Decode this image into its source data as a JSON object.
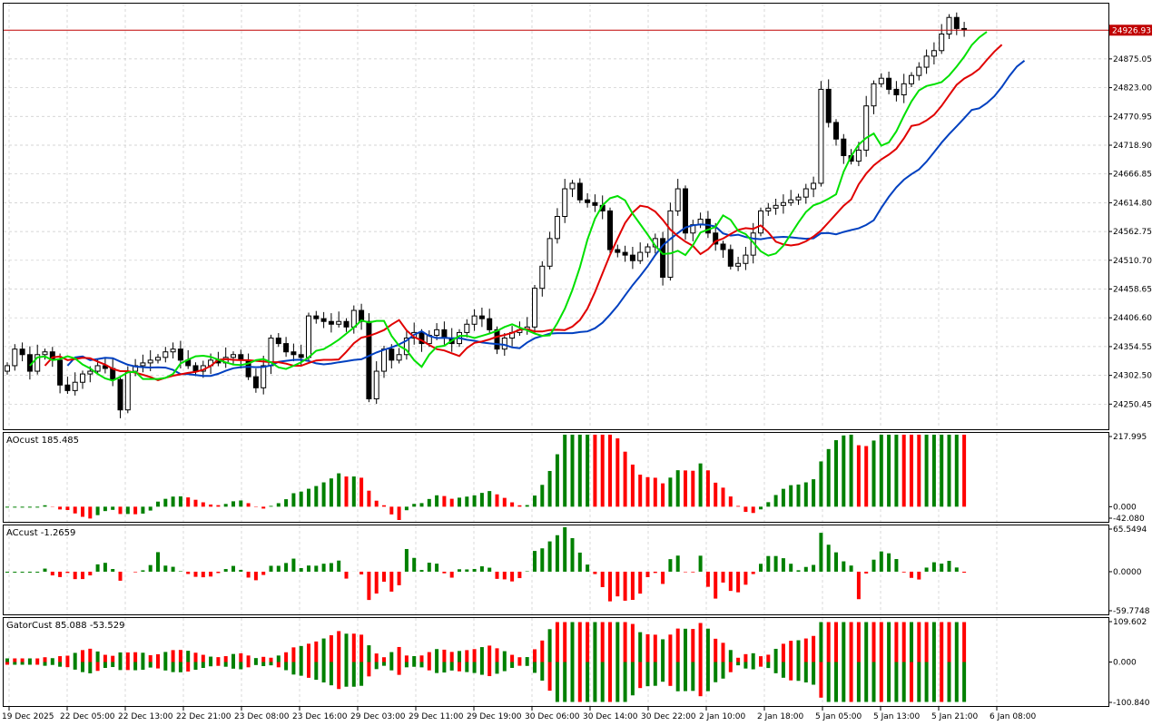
{
  "chart_data": {
    "type": "candlestick",
    "symbol_price_line": "24926.93",
    "x_labels": [
      "19 Dec 2025",
      "22 Dec 05:00",
      "22 Dec 13:00",
      "22 Dec 21:00",
      "23 Dec 08:00",
      "23 Dec 16:00",
      "29 Dec 03:00",
      "29 Dec 11:00",
      "29 Dec 19:00",
      "30 Dec 06:00",
      "30 Dec 14:00",
      "30 Dec 22:00",
      "2 Jan 10:00",
      "2 Jan 18:00",
      "5 Jan 05:00",
      "5 Jan 13:00",
      "5 Jan 21:00",
      "6 Jan 08:00"
    ],
    "price_axis": {
      "ticks": [
        "24875.05",
        "24823.00",
        "24770.95",
        "24718.90",
        "24666.85",
        "24614.80",
        "24562.75",
        "24510.70",
        "24458.65",
        "24406.60",
        "24354.55",
        "24302.50",
        "24250.45"
      ],
      "range": [
        24205,
        24975
      ]
    },
    "close": [
      24320,
      24350,
      24340,
      24310,
      24340,
      24345,
      24330,
      24285,
      24275,
      24290,
      24305,
      24310,
      24320,
      24315,
      24295,
      24240,
      24310,
      24320,
      24325,
      24330,
      24335,
      24345,
      24350,
      24330,
      24320,
      24310,
      24320,
      24330,
      24325,
      24335,
      24340,
      24330,
      24300,
      24280,
      24320,
      24370,
      24360,
      24345,
      24340,
      24335,
      24410,
      24405,
      24400,
      24395,
      24400,
      24390,
      24420,
      24400,
      24260,
      24310,
      24350,
      24330,
      24340,
      24370,
      24380,
      24360,
      24375,
      24385,
      24370,
      24360,
      24380,
      24395,
      24410,
      24405,
      24385,
      24350,
      24370,
      24380,
      24385,
      24390,
      24460,
      24500,
      24550,
      24590,
      24640,
      24650,
      24620,
      24615,
      24610,
      24600,
      24530,
      24525,
      24520,
      24510,
      24525,
      24535,
      24550,
      24480,
      24600,
      24640,
      24560,
      24575,
      24585,
      24560,
      24540,
      24530,
      24500,
      24505,
      24520,
      24560,
      24600,
      24605,
      24610,
      24615,
      24620,
      24625,
      24640,
      24650,
      24820,
      24760,
      24730,
      24700,
      24690,
      24710,
      24790,
      24830,
      24840,
      24820,
      24810,
      24830,
      24845,
      24860,
      24880,
      24890,
      24920,
      24950,
      24930,
      24930
    ],
    "indicators": [
      {
        "name": "AOcust",
        "value": "185.485",
        "axis_ticks": [
          "217.995",
          "0.000",
          "-42.080"
        ]
      },
      {
        "name": "ACcust",
        "value": "-1.2659",
        "axis_ticks": [
          "65.5494",
          "0.0000",
          "-59.7748"
        ]
      },
      {
        "name": "GatorCust",
        "value": "85.088 -53.529",
        "axis_ticks": [
          "109.602",
          "0.000",
          "-100.840"
        ]
      }
    ],
    "colors": {
      "up": "#008000",
      "down": "#ff0000",
      "jaw": "#0040c0",
      "teeth": "#e00000",
      "lips": "#00e000",
      "grid": "#c8c8c8",
      "price_line": "#c00000"
    }
  }
}
